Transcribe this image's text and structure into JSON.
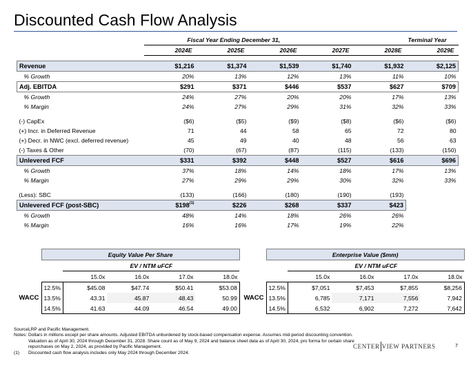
{
  "page": {
    "title": "Discounted Cash Flow Analysis",
    "page_number": "7"
  },
  "header": {
    "fiscal_label": "Fiscal Year Ending December 31,",
    "terminal_label": "Terminal Year",
    "years": [
      "2024E",
      "2025E",
      "2026E",
      "2027E",
      "2028E",
      "2029E"
    ]
  },
  "rows": {
    "revenue": {
      "label": "Revenue",
      "values": [
        "$1,216",
        "$1,374",
        "$1,539",
        "$1,740",
        "$1,932",
        "$2,125"
      ]
    },
    "rev_growth": {
      "label": "% Growth",
      "values": [
        "20%",
        "13%",
        "12%",
        "13%",
        "11%",
        "10%"
      ]
    },
    "ebitda": {
      "label": "Adj. EBITDA",
      "values": [
        "$291",
        "$371",
        "$446",
        "$537",
        "$627",
        "$709"
      ]
    },
    "ebitda_growth": {
      "label": "% Growth",
      "values": [
        "24%",
        "27%",
        "20%",
        "20%",
        "17%",
        "13%"
      ]
    },
    "ebitda_margin": {
      "label": "% Margin",
      "values": [
        "24%",
        "27%",
        "29%",
        "31%",
        "32%",
        "33%"
      ]
    },
    "capex": {
      "label": "(-) CapEx",
      "values": [
        "($6)",
        "($5)",
        "($9)",
        "($8)",
        "($6)",
        "($6)"
      ]
    },
    "deferred_rev": {
      "label": "(+) Incr. in Deferred Revenue",
      "values": [
        "71",
        "44",
        "58",
        "65",
        "72",
        "80"
      ]
    },
    "nwc": {
      "label": "(+) Decr. in NWC (excl. deferred revenue)",
      "values": [
        "45",
        "49",
        "40",
        "48",
        "56",
        "63"
      ]
    },
    "taxes": {
      "label": "(-) Taxes & Other",
      "values": [
        "(70)",
        "(67)",
        "(87)",
        "(115)",
        "(133)",
        "(150)"
      ]
    },
    "ufcf": {
      "label": "Unlevered FCF",
      "values": [
        "$331",
        "$392",
        "$448",
        "$527",
        "$616",
        "$696"
      ]
    },
    "ufcf_growth": {
      "label": "% Growth",
      "values": [
        "37%",
        "18%",
        "14%",
        "18%",
        "17%",
        "13%"
      ]
    },
    "ufcf_margin": {
      "label": "% Margin",
      "values": [
        "27%",
        "29%",
        "29%",
        "30%",
        "32%",
        "33%"
      ]
    },
    "sbc": {
      "label": "(Less): SBC",
      "values": [
        "(133)",
        "(166)",
        "(180)",
        "(190)",
        "(193)"
      ]
    },
    "ufcf_post": {
      "label": "Unlevered FCF (post-SBC)",
      "first_value": "$198",
      "footnote_mark": "(1)",
      "values": [
        "$226",
        "$268",
        "$337",
        "$423"
      ]
    },
    "post_growth": {
      "label": "% Growth",
      "values": [
        "48%",
        "14%",
        "18%",
        "26%",
        "26%"
      ]
    },
    "post_margin": {
      "label": "% Margin",
      "values": [
        "16%",
        "16%",
        "17%",
        "19%",
        "22%"
      ]
    }
  },
  "equity": {
    "title": "Equity Value Per Share",
    "subtitle": "EV / NTM uFCF",
    "wacc_label": "WACC",
    "multiples": [
      "15.0x",
      "16.0x",
      "17.0x",
      "18.0x"
    ],
    "rows": [
      {
        "rate": "12.5%",
        "values": [
          "$45.08",
          "$47.74",
          "$50.41",
          "$53.08"
        ]
      },
      {
        "rate": "13.5%",
        "values": [
          "43.31",
          "45.87",
          "48.43",
          "50.99"
        ]
      },
      {
        "rate": "14.5%",
        "values": [
          "41.63",
          "44.09",
          "46.54",
          "49.00"
        ]
      }
    ]
  },
  "enterprise": {
    "title": "Enterprise Value ($mm)",
    "subtitle": "EV / NTM uFCF",
    "wacc_label": "WACC",
    "multiples": [
      "15.0x",
      "16.0x",
      "17.0x",
      "18.0x"
    ],
    "rows": [
      {
        "rate": "12.5%",
        "values": [
          "$7,051",
          "$7,453",
          "$7,855",
          "$8,256"
        ]
      },
      {
        "rate": "13.5%",
        "values": [
          "6,785",
          "7,171",
          "7,556",
          "7,942"
        ]
      },
      {
        "rate": "14.5%",
        "values": [
          "6,532",
          "6,902",
          "7,272",
          "7,642"
        ]
      }
    ]
  },
  "footnotes": [
    {
      "key": "Source:",
      "text": "LRP and Pacific Management."
    },
    {
      "key": "Notes:",
      "text": "Dollars in millions except per share amounts. Adjusted EBITDA unburdened by stock-based compensation expense. Assumes mid-period discounting convention. Valuation as of April 30, 2024 through December 31, 2028. Share count as of May 9, 2024 and balance sheet data as of April 30, 2024, pro forma for certain share repurchases on May 2, 2024, as provided by Pacific Management."
    },
    {
      "key": "(1)",
      "text": "Discounted cash flow analysis includes only May 2024 through December 2024."
    }
  ],
  "logo": {
    "left": "CENTER",
    "right": "VIEW PARTNERS"
  },
  "colors": {
    "accent": "#2f5597",
    "highlight": "#dde4f0"
  }
}
